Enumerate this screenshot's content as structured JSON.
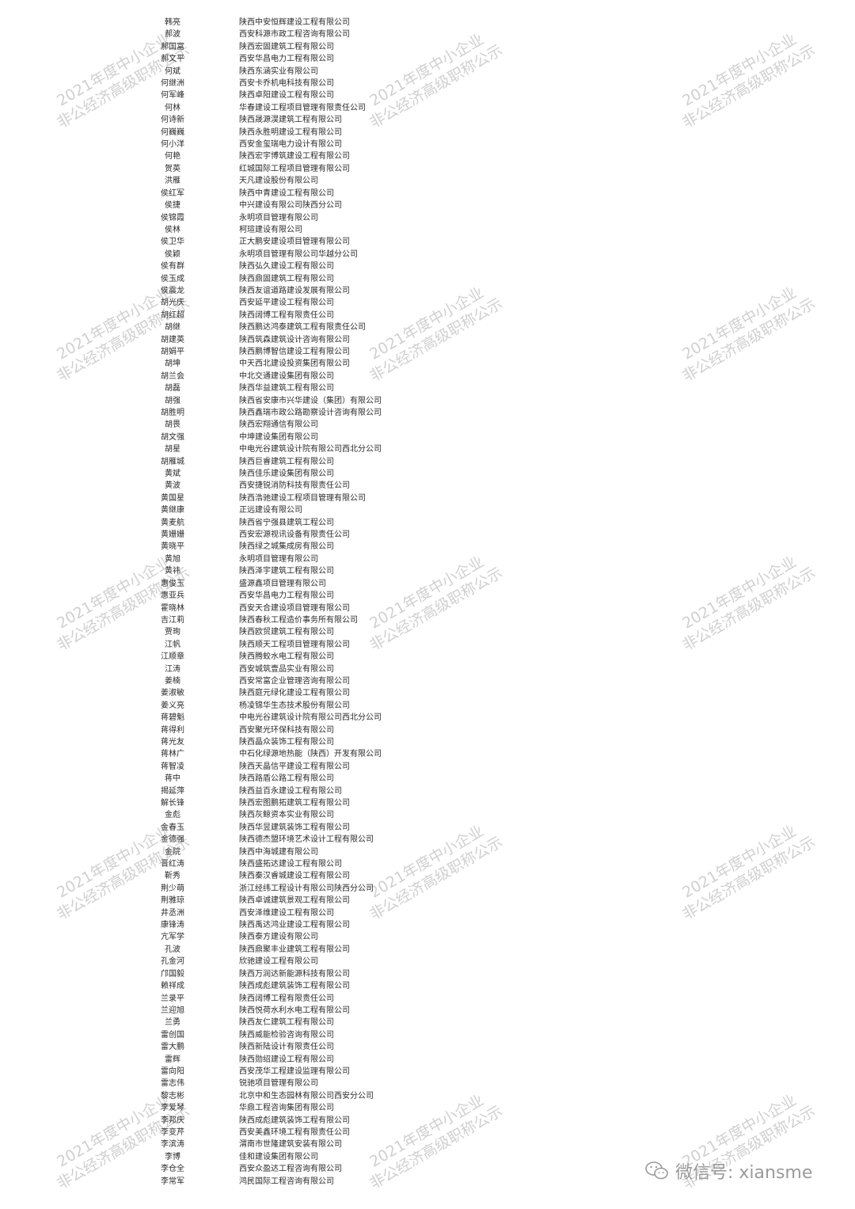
{
  "watermark": {
    "line1": "2021年度中小企业",
    "line2": "非公经济高级职称公示"
  },
  "footer": {
    "label": "微信号: xiansme",
    "icon": "wechat-icon"
  },
  "rows": [
    [
      "韩亮",
      "陕西中安恒辉建设工程有限公司"
    ],
    [
      "郝波",
      "西安科源市政工程咨询有限公司"
    ],
    [
      "郝国富",
      "陕西宏固建筑工程有限公司"
    ],
    [
      "郝文平",
      "西安华昌电力工程有限公司"
    ],
    [
      "何斌",
      "陕西东涵实业有限公司"
    ],
    [
      "何继洲",
      "西安卡乔机电科技有限公司"
    ],
    [
      "何军峰",
      "陕西卓阳建设工程有限公司"
    ],
    [
      "何林",
      "华春建设工程项目管理有限责任公司"
    ],
    [
      "何诗新",
      "陕西晟源淏建筑工程有限公司"
    ],
    [
      "何巍巍",
      "陕西永胜明建设工程有限公司"
    ],
    [
      "何小洋",
      "西安金玺瑞电力设计有限公司"
    ],
    [
      "何艳",
      "陕西宏宇博筑建设工程有限公司"
    ],
    [
      "贺英",
      "红城国际工程项目管理有限公司"
    ],
    [
      "洪雁",
      "天凡建设股份有限公司"
    ],
    [
      "侯红军",
      "陕西中青建设工程有限公司"
    ],
    [
      "侯捷",
      "中兴建设有限公司陕西分公司"
    ],
    [
      "侯锦霞",
      "永明项目管理有限公司"
    ],
    [
      "侯林",
      "柯瑄建设有限公司"
    ],
    [
      "侯卫华",
      "正大鹏安建设项目管理有限公司"
    ],
    [
      "侯颖",
      "永明项目管理有限公司华越分公司"
    ],
    [
      "侯有群",
      "陕西弘久建设工程有限公司"
    ],
    [
      "侯玉成",
      "陕西鼎固建筑工程有限公司"
    ],
    [
      "侯震龙",
      "陕西友谊道路建设发展有限公司"
    ],
    [
      "胡光庆",
      "西安延平建设工程有限公司"
    ],
    [
      "胡红超",
      "陕西阔博工程有限责任公司"
    ],
    [
      "胡继",
      "陕西鹏达鸿泰建筑工程有限责任公司"
    ],
    [
      "胡建英",
      "陕西筑森建筑设计咨询有限公司"
    ],
    [
      "胡娟平",
      "陕西鹏博智信建设工程有限公司"
    ],
    [
      "胡坤",
      "中天西北建设投资集团有限公司"
    ],
    [
      "胡兰会",
      "中北交通建设集团有限公司"
    ],
    [
      "胡磊",
      "陕西华益建筑工程有限公司"
    ],
    [
      "胡强",
      "陕西省安康市兴华建设（集团）有限公司"
    ],
    [
      "胡胜明",
      "陕西鑫瑞市政公路勘察设计咨询有限公司"
    ],
    [
      "胡畏",
      "陕西宏翔通信有限公司"
    ],
    [
      "胡文强",
      "中坤建设集团有限公司"
    ],
    [
      "胡星",
      "中电光谷建筑设计院有限公司西北分公司"
    ],
    [
      "胡雁城",
      "陕西巨睿建筑工程有限公司"
    ],
    [
      "黄斌",
      "陕西佳乐建设集团有限公司"
    ],
    [
      "黄波",
      "西安捷锐消防科技有限责任公司"
    ],
    [
      "黄国星",
      "陕西浩驰建设工程项目管理有限公司"
    ],
    [
      "黄继康",
      "正远建设有限公司"
    ],
    [
      "黄麦航",
      "陕西省宁强县建筑工程公司"
    ],
    [
      "黄姗姗",
      "西安宏源视讯设备有限责任公司"
    ],
    [
      "黄晓平",
      "陕西绿之城集成房有限公司"
    ],
    [
      "黄旭",
      "永明项目管理有限公司"
    ],
    [
      "黄祎",
      "陕西泽宇建筑工程有限公司"
    ],
    [
      "惠俊玉",
      "盛源鑫项目管理有限公司"
    ],
    [
      "惠亚兵",
      "西安华昌电力工程有限公司"
    ],
    [
      "霍晓林",
      "西安天合建设项目管理有限公司"
    ],
    [
      "吉江莉",
      "陕西春秋工程造价事务所有限公司"
    ],
    [
      "贾珣",
      "陕西欧贸建筑工程有限公司"
    ],
    [
      "江帆",
      "陕西顺天工程项目管理有限公司"
    ],
    [
      "江顺章",
      "陕西腾蛟水电工程有限公司"
    ],
    [
      "江涛",
      "西安城筑壹品实业有限公司"
    ],
    [
      "姜楠",
      "西安常富企业管理咨询有限公司"
    ],
    [
      "姜淑敏",
      "陕西庭元绿化建设工程有限公司"
    ],
    [
      "姜义亮",
      "杨凌锦华生态技术股份有限公司"
    ],
    [
      "蒋碧魁",
      "中电光谷建筑设计院有限公司西北分公司"
    ],
    [
      "蒋得利",
      "西安聚光环保科技有限公司"
    ],
    [
      "蒋光友",
      "陕西晶众装饰工程有限公司"
    ],
    [
      "蒋林广",
      "中石化绿源地热能（陕西）开发有限公司"
    ],
    [
      "蒋智凌",
      "陕西天晶信平建设工程有限公司"
    ],
    [
      "蒋中",
      "陕西路盾公路工程有限公司"
    ],
    [
      "揭延萍",
      "陕西益百永建设工程有限公司"
    ],
    [
      "解长锋",
      "陕西宏图鹏拓建筑工程有限公司"
    ],
    [
      "金彪",
      "陕西灰鲸资本实业有限公司"
    ],
    [
      "金春玉",
      "陕西华昱建筑装饰工程有限公司"
    ],
    [
      "金德强",
      "陕西德杰盟环境艺术设计工程有限公司"
    ],
    [
      "金院",
      "陕西中海城建有限公司"
    ],
    [
      "晋红涛",
      "陕西盛拓达建设工程有限公司"
    ],
    [
      "靳秀",
      "陕西秦汉睿城建设工程有限公司"
    ],
    [
      "荆少萌",
      "浙江经纬工程设计有限公司陕西分公司"
    ],
    [
      "荆雅琼",
      "陕西卓诚建筑景观工程有限公司"
    ],
    [
      "井丞洲",
      "西安泽维建设工程有限公司"
    ],
    [
      "康锋涛",
      "陕西禹达鸿业建设工程有限公司"
    ],
    [
      "亢军学",
      "陕西泰方建设有限公司"
    ],
    [
      "孔波",
      "陕西鼎聚丰业建筑工程有限公司"
    ],
    [
      "孔金河",
      "欣驰建设工程有限公司"
    ],
    [
      "邝国毅",
      "陕西万润达新能源科技有限公司"
    ],
    [
      "赖祥成",
      "陕西成彪建筑装饰工程有限公司"
    ],
    [
      "兰录平",
      "陕西阔博工程有限责任公司"
    ],
    [
      "兰迎旭",
      "陕西悦荷水利水电工程有限公司"
    ],
    [
      "兰勇",
      "陕西友仁建筑工程有限公司"
    ],
    [
      "雷创国",
      "陕西威能检验咨询有限公司"
    ],
    [
      "雷大鹏",
      "陕西新陆设计有限责任公司"
    ],
    [
      "雷辉",
      "陕西勋绍建设工程有限公司"
    ],
    [
      "雷向阳",
      "西安茂华工程建设监理有限公司"
    ],
    [
      "雷志伟",
      "锐驰项目管理有限公司"
    ],
    [
      "黎志彬",
      "北京中和生态园林有限公司西安分公司"
    ],
    [
      "李爱琴",
      "华鼎工程咨询集团有限公司"
    ],
    [
      "李邦庆",
      "陕西成彪建筑装饰工程有限公司"
    ],
    [
      "李变芹",
      "西安美鑫环境工程有限责任公司"
    ],
    [
      "李滨涛",
      "渭南市世隆建筑安装有限公司"
    ],
    [
      "李博",
      "佳和建设集团有限公司"
    ],
    [
      "李仓全",
      "西安众盈达工程咨询有限公司"
    ],
    [
      "李常军",
      "鸿民国际工程咨询有限公司"
    ]
  ]
}
